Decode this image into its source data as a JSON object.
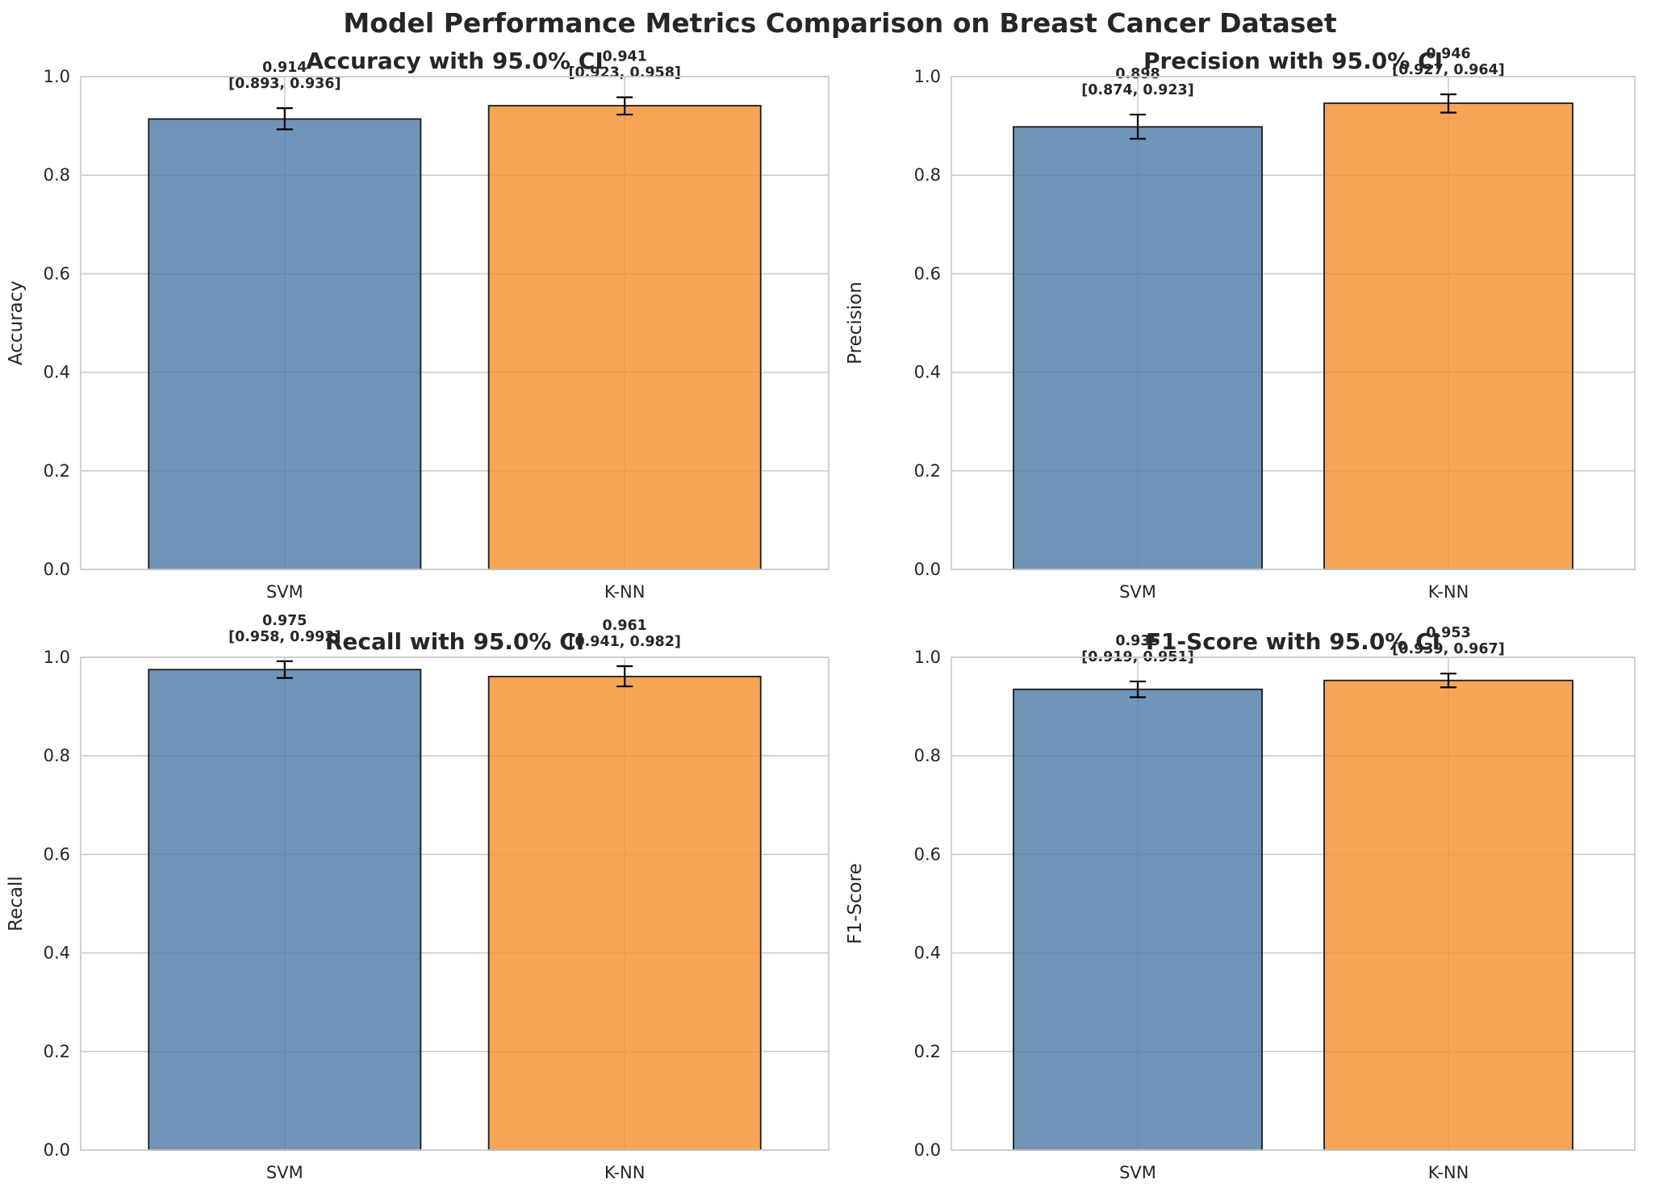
{
  "figure": {
    "title": "Model Performance Metrics Comparison on Breast Cancer Dataset"
  },
  "colors": {
    "svm": "#4e79a7",
    "knn": "#f28e2b",
    "axes_frame": "#cccccc",
    "grid": "#cccccc",
    "text": "#262626"
  },
  "chart_data": [
    {
      "type": "bar",
      "title": "Accuracy with 95.0% CI",
      "ylabel": "Accuracy",
      "xlabel": "",
      "ylim": [
        0,
        1.0
      ],
      "yticks": [
        "0.0",
        "0.2",
        "0.4",
        "0.6",
        "0.8",
        "1.0"
      ],
      "grid": true,
      "categories": [
        "SVM",
        "K-NN"
      ],
      "values": [
        0.914,
        0.941
      ],
      "ci_low": [
        0.893,
        0.923
      ],
      "ci_high": [
        0.936,
        0.958
      ],
      "value_labels": [
        "0.914",
        "0.941"
      ],
      "ci_labels": [
        "[0.893, 0.936]",
        "[0.923, 0.958]"
      ]
    },
    {
      "type": "bar",
      "title": "Precision with 95.0% CI",
      "ylabel": "Precision",
      "xlabel": "",
      "ylim": [
        0,
        1.0
      ],
      "yticks": [
        "0.0",
        "0.2",
        "0.4",
        "0.6",
        "0.8",
        "1.0"
      ],
      "grid": true,
      "categories": [
        "SVM",
        "K-NN"
      ],
      "values": [
        0.898,
        0.946
      ],
      "ci_low": [
        0.874,
        0.927
      ],
      "ci_high": [
        0.923,
        0.964
      ],
      "value_labels": [
        "0.898",
        "0.946"
      ],
      "ci_labels": [
        "[0.874, 0.923]",
        "[0.927, 0.964]"
      ]
    },
    {
      "type": "bar",
      "title": "Recall with 95.0% CI",
      "ylabel": "Recall",
      "xlabel": "",
      "ylim": [
        0,
        1.0
      ],
      "yticks": [
        "0.0",
        "0.2",
        "0.4",
        "0.6",
        "0.8",
        "1.0"
      ],
      "grid": true,
      "categories": [
        "SVM",
        "K-NN"
      ],
      "values": [
        0.975,
        0.961
      ],
      "ci_low": [
        0.958,
        0.941
      ],
      "ci_high": [
        0.992,
        0.982
      ],
      "value_labels": [
        "0.975",
        "0.961"
      ],
      "ci_labels": [
        "[0.958, 0.992]",
        "[0.941, 0.982]"
      ]
    },
    {
      "type": "bar",
      "title": "F1-Score with 95.0% CI",
      "ylabel": "F1-Score",
      "xlabel": "",
      "ylim": [
        0,
        1.0
      ],
      "yticks": [
        "0.0",
        "0.2",
        "0.4",
        "0.6",
        "0.8",
        "1.0"
      ],
      "grid": true,
      "categories": [
        "SVM",
        "K-NN"
      ],
      "values": [
        0.935,
        0.953
      ],
      "ci_low": [
        0.919,
        0.939
      ],
      "ci_high": [
        0.951,
        0.967
      ],
      "value_labels": [
        "0.935",
        "0.953"
      ],
      "ci_labels": [
        "[0.919, 0.951]",
        "[0.939, 0.967]"
      ]
    }
  ]
}
